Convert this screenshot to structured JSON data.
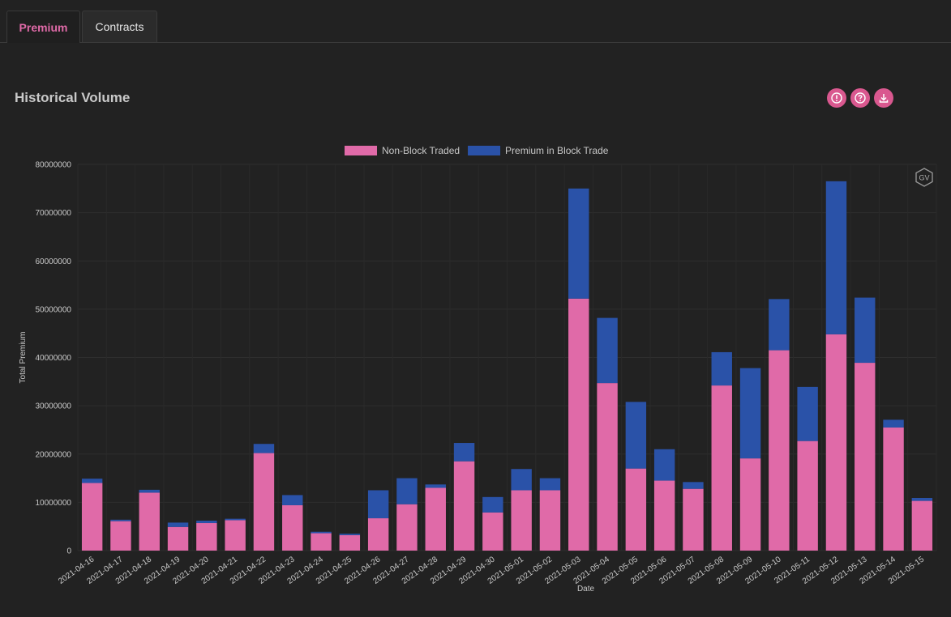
{
  "tabs": [
    {
      "label": "Premium",
      "active": true
    },
    {
      "label": "Contracts",
      "active": false
    }
  ],
  "section": {
    "title": "Historical Volume",
    "icons": [
      "info-icon",
      "help-icon",
      "download-icon"
    ],
    "watermark": "GV"
  },
  "colors": {
    "accent": "#d9588f",
    "non_block": "#e06aa8",
    "block": "#2a52a8",
    "background": "#222222"
  },
  "chart_data": {
    "type": "bar",
    "stacked": true,
    "xlabel": "Date",
    "ylabel": "Total Premium",
    "ylim": [
      0,
      80000000
    ],
    "yticks": [
      0,
      10000000,
      20000000,
      30000000,
      40000000,
      50000000,
      60000000,
      70000000,
      80000000
    ],
    "grid": true,
    "legend_position": "top-center",
    "categories": [
      "2021-04-16",
      "2021-04-17",
      "2021-04-18",
      "2021-04-19",
      "2021-04-20",
      "2021-04-21",
      "2021-04-22",
      "2021-04-23",
      "2021-04-24",
      "2021-04-25",
      "2021-04-26",
      "2021-04-27",
      "2021-04-28",
      "2021-04-29",
      "2021-04-30",
      "2021-05-01",
      "2021-05-02",
      "2021-05-03",
      "2021-05-04",
      "2021-05-05",
      "2021-05-06",
      "2021-05-07",
      "2021-05-08",
      "2021-05-09",
      "2021-05-10",
      "2021-05-11",
      "2021-05-12",
      "2021-05-13",
      "2021-05-14",
      "2021-05-15"
    ],
    "series": [
      {
        "name": "Non-Block Traded",
        "color": "#e06aa8",
        "values": [
          14000000,
          6100000,
          12000000,
          4900000,
          5700000,
          6300000,
          20200000,
          9400000,
          3600000,
          3200000,
          6700000,
          9600000,
          13000000,
          18500000,
          7900000,
          12500000,
          12500000,
          52200000,
          34700000,
          17000000,
          14500000,
          12800000,
          34200000,
          19100000,
          41500000,
          22700000,
          44800000,
          38900000,
          25500000,
          10300000
        ]
      },
      {
        "name": "Premium in Block Trade",
        "color": "#2a52a8",
        "values": [
          900000,
          300000,
          600000,
          900000,
          500000,
          300000,
          1900000,
          2100000,
          300000,
          300000,
          5800000,
          5400000,
          700000,
          3800000,
          3200000,
          4400000,
          2500000,
          22800000,
          13500000,
          13800000,
          6500000,
          1400000,
          6900000,
          18700000,
          10600000,
          11200000,
          31700000,
          13500000,
          1600000,
          600000
        ]
      }
    ]
  }
}
